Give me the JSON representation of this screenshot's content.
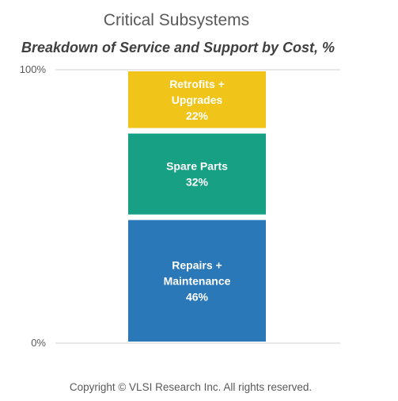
{
  "chart_data": {
    "type": "bar",
    "stacked": true,
    "title": "Critical Subsystems",
    "subtitle": "Breakdown of Service and Support by Cost, %",
    "y_ticks": [
      "0%",
      "100%"
    ],
    "ylim": [
      0,
      100
    ],
    "grid": true,
    "series": [
      {
        "label_lines": [
          "Repairs +",
          "Maintenance",
          "46%"
        ],
        "value": 46,
        "color": "#2b78b9"
      },
      {
        "label_lines": [
          "Spare Parts",
          "32%"
        ],
        "value": 32,
        "color": "#17a083"
      },
      {
        "label_lines": [
          "Retrofits +",
          "Upgrades",
          "22%"
        ],
        "value": 22,
        "color": "#f0c419"
      }
    ]
  },
  "footer": {
    "copyright": "Copyright © VLSI Research Inc.  All rights reserved."
  }
}
